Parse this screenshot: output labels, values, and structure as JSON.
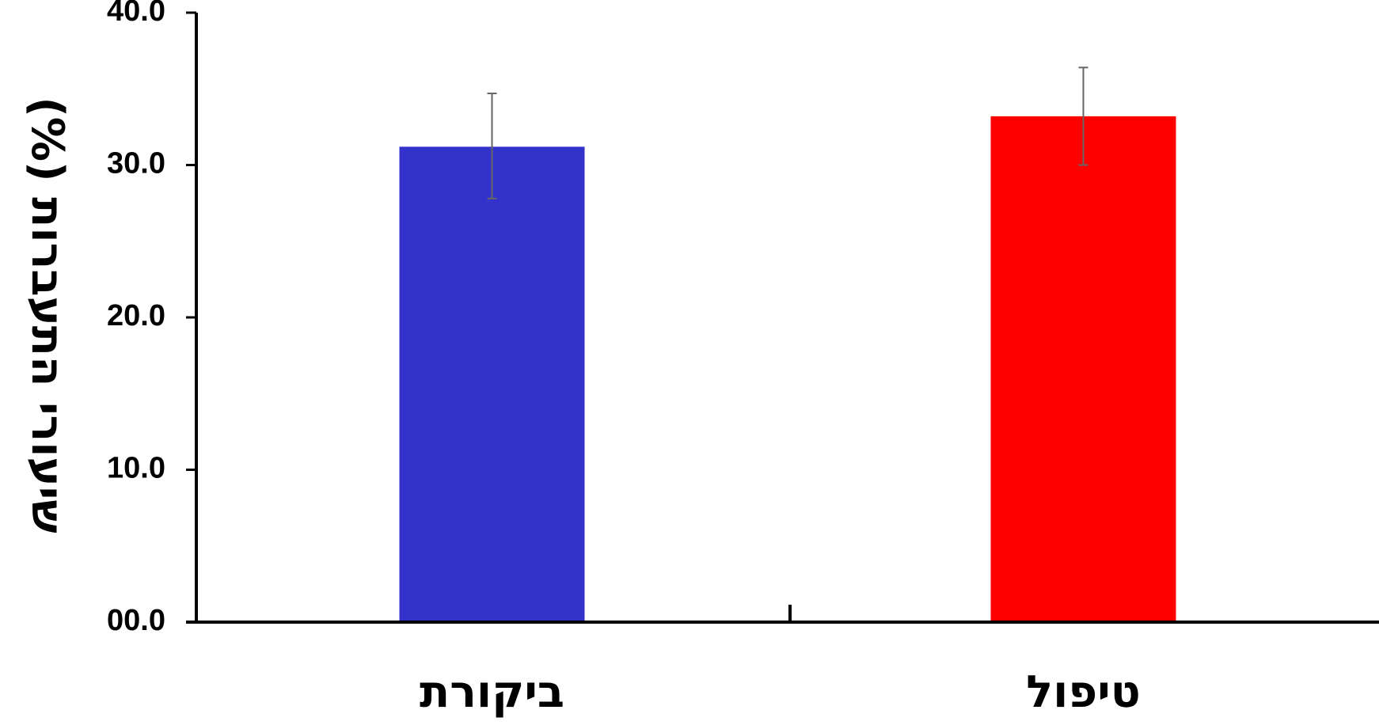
{
  "chart_data": {
    "type": "bar",
    "title": "",
    "xlabel": "",
    "ylabel": "שיעורי התעברות (%)",
    "categories": [
      "ביקורת",
      "טיפול"
    ],
    "values": [
      31.2,
      33.2
    ],
    "error_low": [
      27.8,
      30.0
    ],
    "error_high": [
      34.7,
      36.4
    ],
    "colors": [
      "#3333cc",
      "#ff0000"
    ],
    "ylim": [
      0,
      40
    ],
    "yticks": [
      0,
      10,
      20,
      30,
      40
    ],
    "ytick_labels": [
      "00.0",
      "10.0",
      "20.0",
      "30.0",
      "40.0"
    ],
    "grid": false,
    "legend": "none"
  }
}
